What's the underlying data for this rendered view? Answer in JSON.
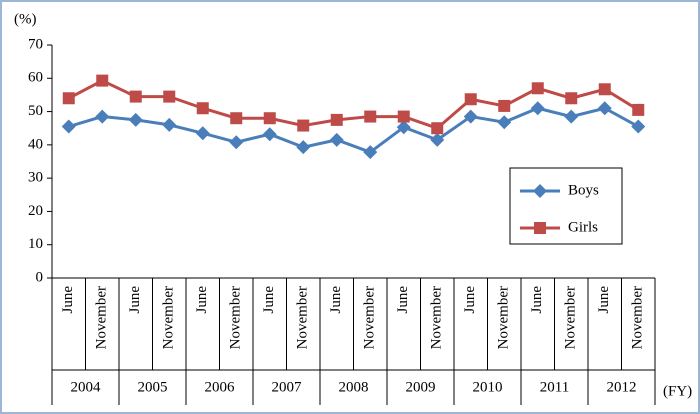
{
  "chart_data": {
    "type": "line",
    "y_unit": "(%)",
    "x_unit": "(FY)",
    "categories": [
      "June",
      "November",
      "June",
      "November",
      "June",
      "November",
      "June",
      "November",
      "June",
      "November",
      "June",
      "November",
      "June",
      "November",
      "June",
      "November",
      "June",
      "November"
    ],
    "category_groups": [
      "2004",
      "2005",
      "2006",
      "2007",
      "2008",
      "2009",
      "2010",
      "2011",
      "2012"
    ],
    "series": [
      {
        "name": "Boys",
        "color": "#4a7ebb",
        "marker": "diamond",
        "values": [
          45.5,
          48.5,
          47.5,
          46,
          43.5,
          40.8,
          43.2,
          39.3,
          41.5,
          37.8,
          45.3,
          41.5,
          48.5,
          46.8,
          51,
          48.5,
          51,
          45.5
        ]
      },
      {
        "name": "Girls",
        "color": "#be4b48",
        "marker": "square",
        "values": [
          54,
          59.3,
          54.5,
          54.5,
          51,
          48,
          48,
          45.8,
          47.5,
          48.5,
          48.5,
          45,
          53.7,
          51.7,
          57,
          54,
          56.7,
          50.5
        ]
      }
    ],
    "ylim": [
      0,
      70
    ],
    "yticks": [
      0,
      10,
      20,
      30,
      40,
      50,
      60,
      70
    ],
    "grid": false
  }
}
